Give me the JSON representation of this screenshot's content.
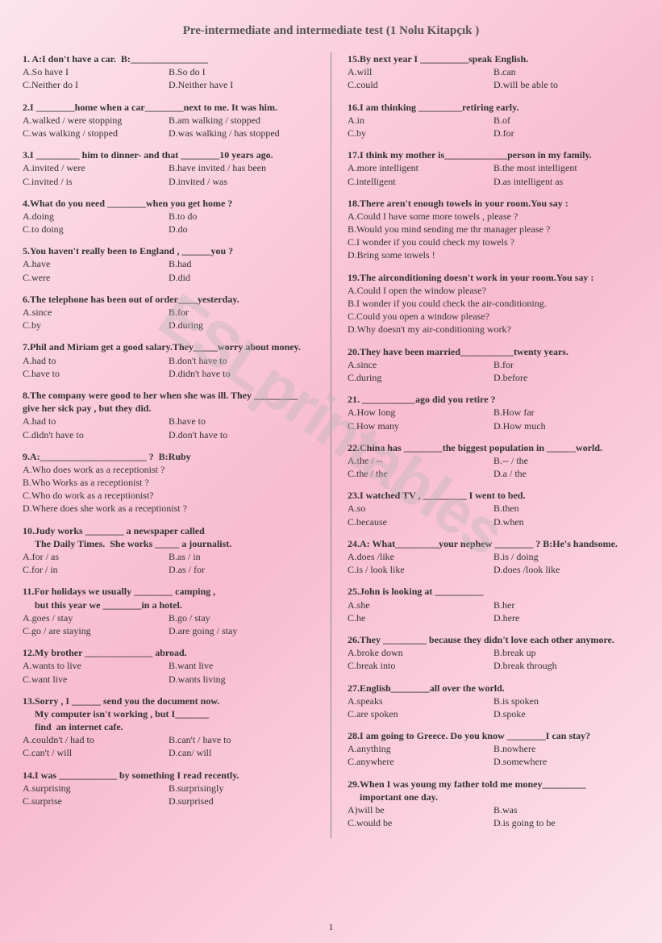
{
  "title": "Pre-intermediate and intermediate test (1 Nolu Kitapçık )",
  "watermark": "ESLprintables",
  "pagenum": "1",
  "left": [
    {
      "n": "1",
      "stem": ". A:I don't have a car.  B:________________",
      "opts": [
        [
          "A.So have I",
          "B.So do I"
        ],
        [
          "C.Neither do I",
          "D.Neither have I"
        ]
      ]
    },
    {
      "n": "2",
      "stem": ".I ________home when a car________next to me. It was him.",
      "opts": [
        [
          "A.walked / were stopping",
          "B.am walking / stopped"
        ],
        [
          "C.was walking / stopped",
          "D.was walking / has stopped"
        ]
      ]
    },
    {
      "n": "3",
      "stem": ".I _________ him to dinner- and that ________10 years ago.",
      "opts": [
        [
          "A.invited / were",
          "B.have invited / has been"
        ],
        [
          "C.invited / is",
          "D.invited / was"
        ]
      ]
    },
    {
      "n": "4",
      "stem": ".What do you need ________when you get home ?",
      "opts": [
        [
          "A.doing",
          "B.to do"
        ],
        [
          "C.to doing",
          "D.do"
        ]
      ]
    },
    {
      "n": "5",
      "stem": ".You haven't really been to England , ______you ?",
      "opts": [
        [
          "A.have",
          "B.had"
        ],
        [
          "C.were",
          "D.did"
        ]
      ]
    },
    {
      "n": "6",
      "stem": ".The telephone has been out of order____yesterday.",
      "opts": [
        [
          "A.since",
          "B.for"
        ],
        [
          "C.by",
          "D.during"
        ]
      ]
    },
    {
      "n": "7",
      "stem": ".Phil and Miriam get a good salary.They_____worry about money.",
      "opts": [
        [
          "A.had to",
          "B.don't have to"
        ],
        [
          "C.have to",
          "D.didn't have to"
        ]
      ]
    },
    {
      "n": "8",
      "stem": ".The company were good to her when she was ill. They _________ give her sick pay , but they did.",
      "opts": [
        [
          "A.had to",
          "B.have to"
        ],
        [
          "C.didn't have to",
          "D.don't have to"
        ]
      ]
    },
    {
      "n": "9",
      "stem": ".A:______________________ ?  B:Ruby",
      "opts": [
        [
          "A.Who does work as a receptionist ?"
        ],
        [
          "B.Who Works as a receptionist ?"
        ],
        [
          "C.Who do work as a receptionist?"
        ],
        [
          "D.Where does she work as a receptionist ?"
        ]
      ]
    },
    {
      "n": "10",
      "stem": ".Judy works ________ a newspaper called\n     The Daily Times.  She works _____ a journalist.",
      "opts": [
        [
          "A.for / as",
          "B.as / in"
        ],
        [
          "C.for / in",
          "D.as / for"
        ]
      ]
    },
    {
      "n": "11",
      "stem": ".For holidays we usually ________ camping ,\n     but this year we ________in a hotel.",
      "opts": [
        [
          "A.goes / stay",
          "B.go / stay"
        ],
        [
          "C.go / are staying",
          "D.are going  / stay"
        ]
      ]
    },
    {
      "n": "12",
      "stem": ".My brother ______________ abroad.",
      "opts": [
        [
          "A.wants to live",
          "B.want live"
        ],
        [
          "C.want live",
          "D.wants living"
        ]
      ]
    },
    {
      "n": "13",
      "stem": ".Sorry , I ______ send you the document now.\n     My computer isn't working , but I_______\n     find  an internet cafe.",
      "opts": [
        [
          "A.couldn't / had to",
          "B.can't / have to"
        ],
        [
          "C.can't / will",
          "D.can/ will"
        ]
      ]
    },
    {
      "n": "14",
      "stem": ".I was ____________ by something I read recently.",
      "opts": [
        [
          "A.surprising",
          "B.surprisingly"
        ],
        [
          "C.surprise",
          "D.surprised"
        ]
      ]
    }
  ],
  "right": [
    {
      "n": "15",
      "stem": ".By next year I __________speak English.",
      "opts": [
        [
          "A.will",
          "B.can"
        ],
        [
          "C.could",
          "D.will be able to"
        ]
      ]
    },
    {
      "n": "16",
      "stem": ".I am thinking _________retiring early.",
      "opts": [
        [
          "A.in",
          "B.of"
        ],
        [
          "C.by",
          "D.for"
        ]
      ]
    },
    {
      "n": "17",
      "stem": ".I think my mother is_____________person in my family.",
      "opts": [
        [
          "A.more intelligent",
          "B.the most intelligent"
        ],
        [
          "C.intelligent",
          "D.as intelligent as"
        ]
      ]
    },
    {
      "n": "18",
      "stem": ".There aren't enough towels in your room.You say :",
      "opts": [
        [
          "A.Could I have some more towels , please ?"
        ],
        [
          "B.Would you mind sending me thr manager please ?"
        ],
        [
          "C.I wonder if you could check my towels ?"
        ],
        [
          "D.Bring some towels !"
        ]
      ]
    },
    {
      "n": "19",
      "stem": ".The airconditioning doesn't work in your room.You say :",
      "opts": [
        [
          "A.Could I  open the window please?"
        ],
        [
          "B.I wonder if you could check the air-conditioning."
        ],
        [
          "C.Could you open a window please?"
        ],
        [
          "D.Why doesn't my air-conditioning work?"
        ]
      ]
    },
    {
      "n": "20",
      "stem": ".They have been married___________twenty years.",
      "opts": [
        [
          "A.since",
          "B.for"
        ],
        [
          "C.during",
          "D.before"
        ]
      ]
    },
    {
      "n": "21",
      "stem": ". ___________ago did you retire ?",
      "opts": [
        [
          "A.How long",
          "B.How far"
        ],
        [
          "C.How many",
          "D.How much"
        ]
      ]
    },
    {
      "n": "22",
      "stem": ".China has ________the biggest population in ______world.",
      "opts": [
        [
          "A.the / --",
          "B.-- / the"
        ],
        [
          "C.the / the",
          "D.a / the"
        ]
      ]
    },
    {
      "n": "23",
      "stem": ".I watched TV , _________ I went to bed.",
      "opts": [
        [
          "A.so",
          "B.then"
        ],
        [
          "C.because",
          "D.when"
        ]
      ]
    },
    {
      "n": "24",
      "stem": ".A: What_________your nephew ________ ? B:He's handsome.",
      "opts": [
        [
          "A.does /like",
          "B.is / doing"
        ],
        [
          "C.is / look like",
          "D.does  /look  like"
        ]
      ]
    },
    {
      "n": "25",
      "stem": ".John is looking at __________",
      "opts": [
        [
          "A.she",
          "B.her"
        ],
        [
          "C.he",
          "D.here"
        ]
      ]
    },
    {
      "n": "26",
      "stem": ".They _________ because they didn't love each other anymore.",
      "opts": [
        [
          "A.broke down",
          "B.break up"
        ],
        [
          "C.break into",
          "D.break through"
        ]
      ]
    },
    {
      "n": "27",
      "stem": ".English________all over the world.",
      "opts": [
        [
          "A.speaks",
          "B.is spoken"
        ],
        [
          "C.are spoken",
          "D.spoke"
        ]
      ]
    },
    {
      "n": "28",
      "stem": ".I am going to Greece. Do you know ________I can stay?",
      "opts": [
        [
          "A.anything",
          "B.nowhere"
        ],
        [
          "C.anywhere",
          "D.somewhere"
        ]
      ]
    },
    {
      "n": "29",
      "stem": ".When I was young my father told me money_________\n     important one day.",
      "opts": [
        [
          "A)will be",
          "B.was"
        ],
        [
          "C.would be",
          "D.is going to be"
        ]
      ]
    }
  ]
}
